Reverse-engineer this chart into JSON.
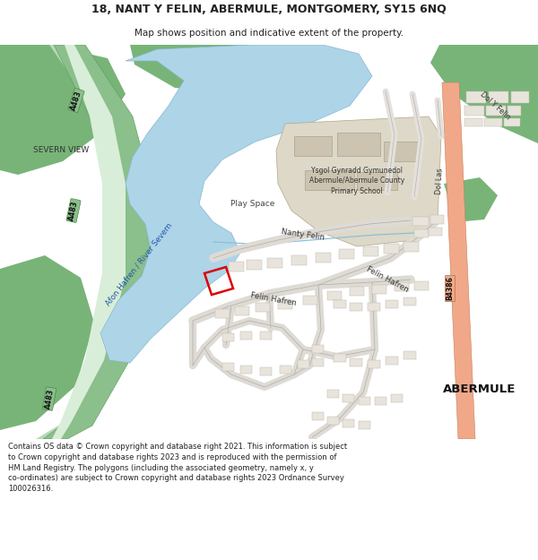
{
  "title_line1": "18, NANT Y FELIN, ABERMULE, MONTGOMERY, SY15 6NQ",
  "title_line2": "Map shows position and indicative extent of the property.",
  "footer": "Contains OS data © Crown copyright and database right 2021. This information is subject\nto Crown copyright and database rights 2023 and is reproduced with the permission of\nHM Land Registry. The polygons (including the associated geometry, namely x, y\nco-ordinates) are subject to Crown copyright and database rights 2023 Ordnance Survey\n100026316.",
  "bg_color": "#ffffff",
  "map_bg": "#f0ede8",
  "river_color": "#aed4e8",
  "road_a_color": "#8bbf8b",
  "road_a_light": "#c8e0c8",
  "road_b_color": "#f0a888",
  "school_color": "#ddd8c8",
  "green_dark": "#78b478",
  "green_light": "#b8d8b8",
  "building_fill": "#e8e4dc",
  "building_edge": "#c0bab0",
  "text_dark": "#222222",
  "text_road": "#111111",
  "property_red": "#dd0000"
}
